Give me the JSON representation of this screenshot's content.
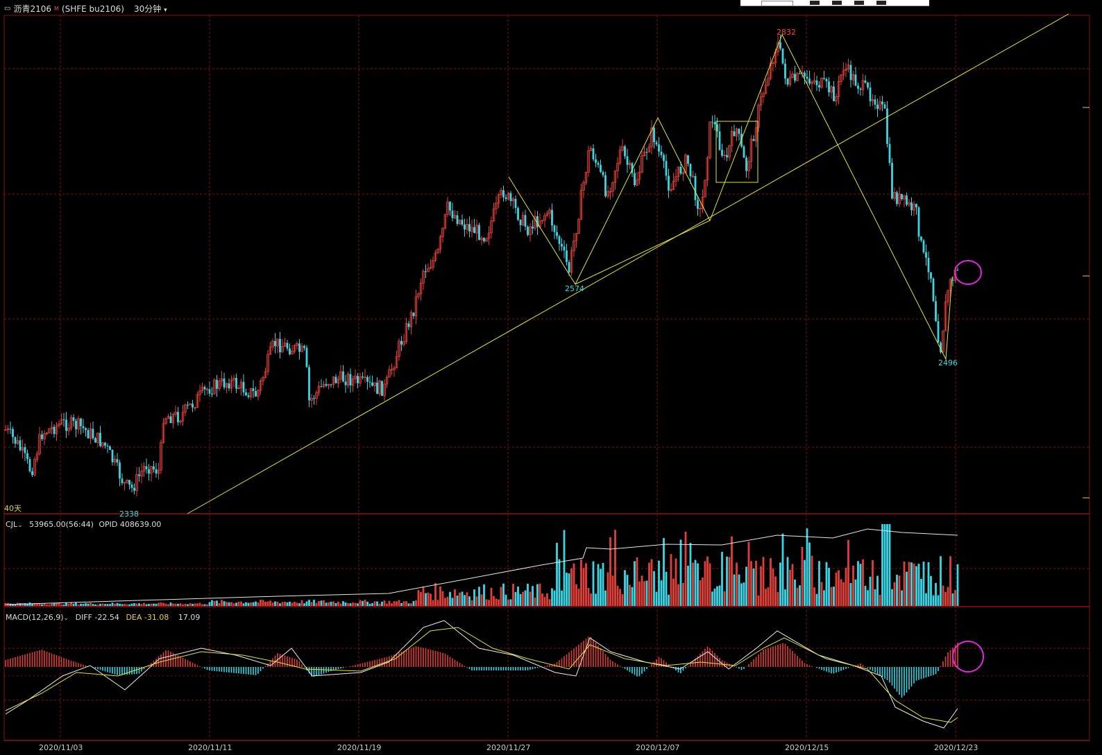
{
  "header": {
    "icon": "window-icon",
    "instrument_name": "沥青2106",
    "instrument_flag": "M",
    "instrument_code": "(SHFE bu2106)",
    "timeframe": "30分钟",
    "dropdown_icon": "chevron-down-icon"
  },
  "price_panel": {
    "period_label": "40天",
    "annotations": {
      "high": "2832",
      "low_mid": "2574",
      "low_start": "2338",
      "low_end": "2496"
    }
  },
  "volume_panel": {
    "indicator": "CJL",
    "volume_text": "53965.00(56:44)",
    "opid_label": "OPID",
    "opid_value": "408639.00"
  },
  "macd_panel": {
    "indicator": "MACD(12,26,9)",
    "diff_label": "DIFF",
    "diff_value": "-22.54",
    "dea_label": "DEA",
    "dea_value": "-31.08",
    "macd_value": "17.09"
  },
  "x_axis": {
    "dates": [
      "2020/11/03",
      "2020/11/11",
      "2020/11/19",
      "2020/11/27",
      "2020/12/07",
      "2020/12/15",
      "2020/12/23"
    ]
  },
  "colors": {
    "background": "#000000",
    "up": "#e0403a",
    "down": "#37d7e6",
    "trendline": "#e6e62e",
    "grid": "#8a1010",
    "highlight": "#e028e0",
    "label_cyan": "#2ee0e8",
    "label_red": "#ff4040",
    "label_yellow": "#e6d23c"
  }
}
